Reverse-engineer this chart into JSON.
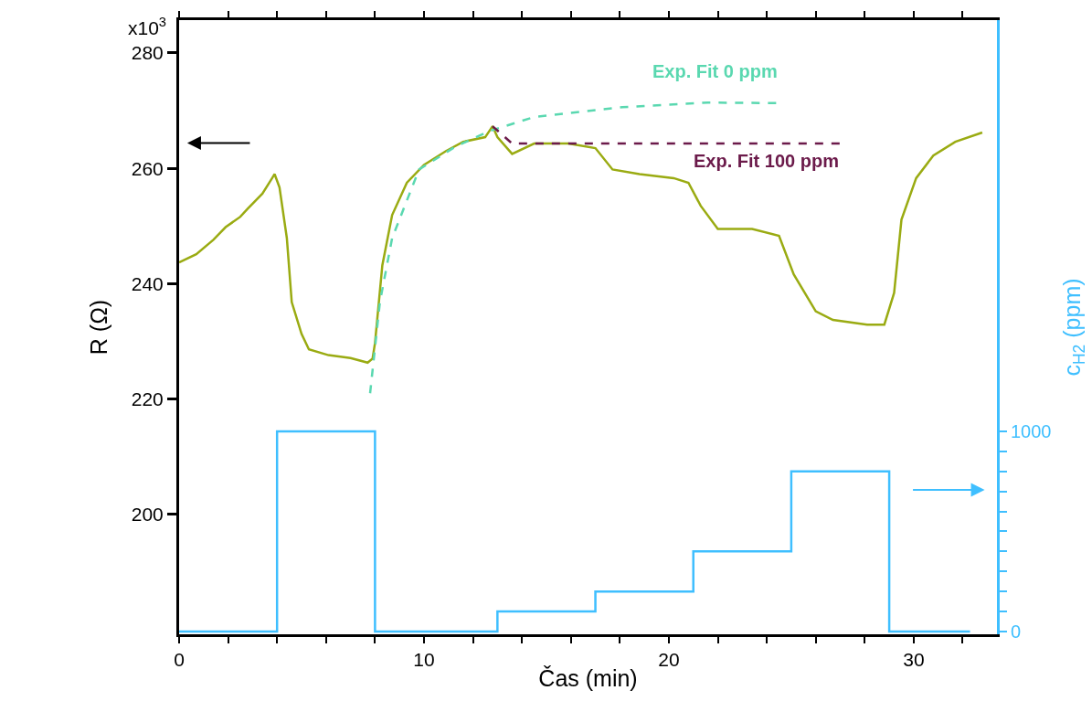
{
  "chart_data": {
    "type": "line",
    "xlabel": "Čas (min)",
    "ylabel": "R (Ω)",
    "y2label": "c$_{H2}$ (ppm)",
    "xlim": [
      0,
      33.4
    ],
    "xticks": [
      0,
      {
        "value": 2,
        "label": null
      },
      {
        "value": 4,
        "label": null
      },
      {
        "value": 6,
        "label": null
      },
      {
        "value": 8,
        "label": null
      },
      10,
      {
        "value": 12,
        "label": null
      },
      {
        "value": 14,
        "label": null
      },
      {
        "value": 16,
        "label": null
      },
      {
        "value": 18,
        "label": null
      },
      20,
      {
        "value": 22,
        "label": null
      },
      {
        "value": 24,
        "label": null
      },
      {
        "value": 26,
        "label": null
      },
      {
        "value": 28,
        "label": null
      },
      30,
      {
        "value": 32,
        "label": null
      }
    ],
    "ylim": [
      179.2,
      285.7
    ],
    "yticks": [
      200,
      220,
      240,
      260,
      280
    ],
    "annotations": [
      "x10$^{3}$"
    ],
    "y2lim": [
      -14,
      3055
    ],
    "y2ticks": [
      0,
      {
        "value": 100,
        "label": null
      },
      {
        "value": 200,
        "label": null
      },
      {
        "value": 300,
        "label": null
      },
      {
        "value": 400,
        "label": null
      },
      {
        "value": 500,
        "label": null
      },
      {
        "value": 600,
        "label": null
      },
      {
        "value": 700,
        "label": null
      },
      {
        "value": 800,
        "label": null
      },
      {
        "value": 900,
        "label": null
      },
      1000
    ],
    "legend": false,
    "marker": "none",
    "series": [
      {
        "color": "#9aab12",
        "line_style": "solid",
        "x": [
          0,
          0.7,
          1.4,
          1.9,
          2.5,
          2.8,
          3.4,
          3.8,
          3.9,
          4.1,
          4.4,
          4.6,
          5.0,
          5.3,
          6.1,
          7.0,
          7.7,
          7.9,
          8.0,
          8.3,
          8.7,
          9.3,
          10.0,
          10.9,
          11.6,
          12.5,
          12.8,
          13.0,
          13.6,
          14.5,
          15.9,
          17.0,
          17.7,
          18.8,
          20.2,
          20.8,
          21.3,
          22.0,
          23.4,
          24.5,
          25.1,
          26.0,
          26.7,
          28.1,
          28.8,
          29.2,
          29.5,
          30.1,
          30.8,
          31.7,
          32.8
        ],
        "values": [
          243.7,
          245.1,
          247.6,
          249.8,
          251.6,
          253,
          255.6,
          258.3,
          259,
          256.7,
          247.9,
          236.8,
          231.3,
          228.6,
          227.6,
          227.1,
          226.3,
          227,
          229.7,
          243.2,
          251.9,
          257.5,
          260.6,
          263,
          264.6,
          265.4,
          267.3,
          265.4,
          262.5,
          264.3,
          264.3,
          263.5,
          259.8,
          259,
          258.3,
          257.5,
          253.5,
          249.5,
          249.5,
          248.3,
          241.6,
          235.2,
          233.7,
          232.9,
          232.9,
          238.4,
          251.1,
          258.3,
          262.2,
          264.6,
          266.2
        ]
      },
      {
        "name": "Exp. Fit 0 ppm",
        "color": "#5ad8b0",
        "line_style": "dashed",
        "x": [
          7.8,
          8.2,
          8.7,
          9.8,
          11.3,
          12.7,
          14.5,
          18.1,
          21.6,
          24.5
        ],
        "values": [
          221,
          236.8,
          247.9,
          259.8,
          263.8,
          266.5,
          268.9,
          270.6,
          271.4,
          271.3
        ]
      },
      {
        "name": "Exp. Fit 100 ppm",
        "color": "#6b1a4a",
        "line_style": "dashed",
        "x": [
          12.8,
          13.6,
          27.0
        ],
        "values": [
          267.3,
          264.3,
          264.3
        ]
      },
      {
        "type": "step",
        "axis": "y2",
        "color": "#3fbfff",
        "line_style": "solid",
        "x": [
          0,
          4,
          8,
          13,
          17,
          21,
          25,
          29,
          32.3
        ],
        "values": [
          0,
          1000,
          0,
          100,
          200,
          400,
          800,
          0,
          0
        ]
      }
    ]
  }
}
